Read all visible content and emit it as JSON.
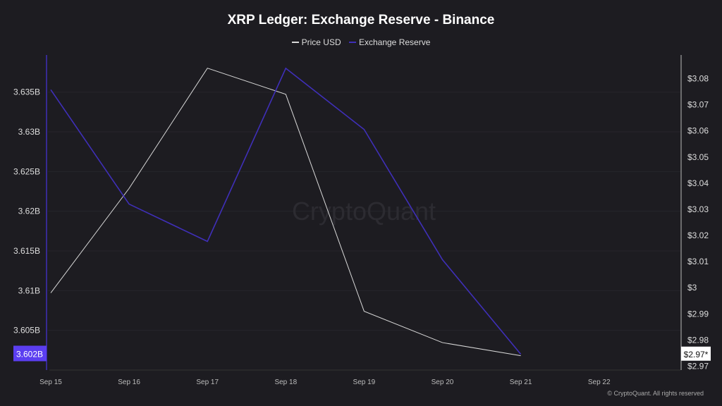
{
  "chart_data": {
    "type": "line",
    "title": "XRP Ledger: Exchange Reserve - Binance",
    "x": [
      "Sep 15",
      "Sep 16",
      "Sep 17",
      "Sep 18",
      "Sep 19",
      "Sep 20",
      "Sep 21"
    ],
    "x_ticks": [
      "Sep 15",
      "Sep 16",
      "Sep 17",
      "Sep 18",
      "Sep 19",
      "Sep 20",
      "Sep 21",
      "Sep 22"
    ],
    "series": [
      {
        "name": "Price USD",
        "axis": "right",
        "color": "#d9d9d9",
        "values": [
          2.998,
          3.038,
          3.084,
          3.074,
          2.991,
          2.979,
          2.974
        ]
      },
      {
        "name": "Exchange Reserve",
        "axis": "left",
        "color": "#3f2fb8",
        "values": [
          3.6353,
          3.6209,
          3.6162,
          3.638,
          3.6303,
          3.6139,
          3.602
        ]
      }
    ],
    "left_axis": {
      "ylim": [
        3.6,
        3.6395
      ],
      "ticks": [
        3.605,
        3.61,
        3.615,
        3.62,
        3.625,
        3.63,
        3.635
      ],
      "tick_labels": [
        "3.605B",
        "3.61B",
        "3.615B",
        "3.62B",
        "3.625B",
        "3.63B",
        "3.635B"
      ],
      "current_label": "3.602B",
      "current_color": "#5b3ef0"
    },
    "right_axis": {
      "ylim": [
        2.9685,
        3.0885
      ],
      "ticks": [
        2.97,
        2.98,
        2.99,
        3.0,
        3.01,
        3.02,
        3.03,
        3.04,
        3.05,
        3.06,
        3.07,
        3.08
      ],
      "tick_labels": [
        "$2.97",
        "$2.98",
        "$2.99",
        "$3",
        "$3.01",
        "$3.02",
        "$3.03",
        "$3.04",
        "$3.05",
        "$3.06",
        "$3.07",
        "$3.08"
      ],
      "current_label": "$2.97*"
    },
    "grid": true,
    "legend": "top-center",
    "watermark": "CryptoQuant"
  },
  "credit": "© CryptoQuant. All rights reserved"
}
